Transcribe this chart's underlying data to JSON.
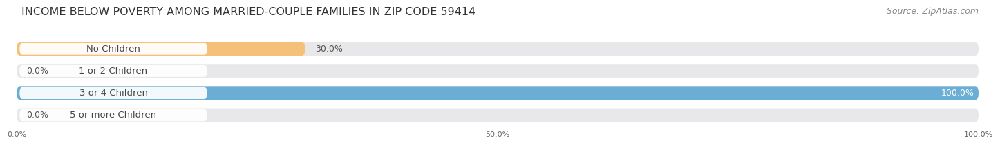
{
  "title": "INCOME BELOW POVERTY AMONG MARRIED-COUPLE FAMILIES IN ZIP CODE 59414",
  "source": "Source: ZipAtlas.com",
  "categories": [
    "No Children",
    "1 or 2 Children",
    "3 or 4 Children",
    "5 or more Children"
  ],
  "values": [
    30.0,
    0.0,
    100.0,
    0.0
  ],
  "bar_colors": [
    "#f5c07a",
    "#f0a0a8",
    "#6aaed6",
    "#c8a8e0"
  ],
  "bar_bg_color": "#e8e8ea",
  "bar_height": 0.62,
  "xlim": [
    0,
    100
  ],
  "xticks": [
    0,
    50,
    100
  ],
  "xtick_labels": [
    "0.0%",
    "50.0%",
    "100.0%"
  ],
  "title_fontsize": 11.5,
  "source_fontsize": 9,
  "value_fontsize": 9,
  "category_fontsize": 9.5,
  "fig_bg_color": "#ffffff",
  "label_bg_color": "#ffffff",
  "small_bar_pct": 15.0,
  "value_label_inside_color": "#ffffff",
  "value_label_outside_color": "#555555"
}
